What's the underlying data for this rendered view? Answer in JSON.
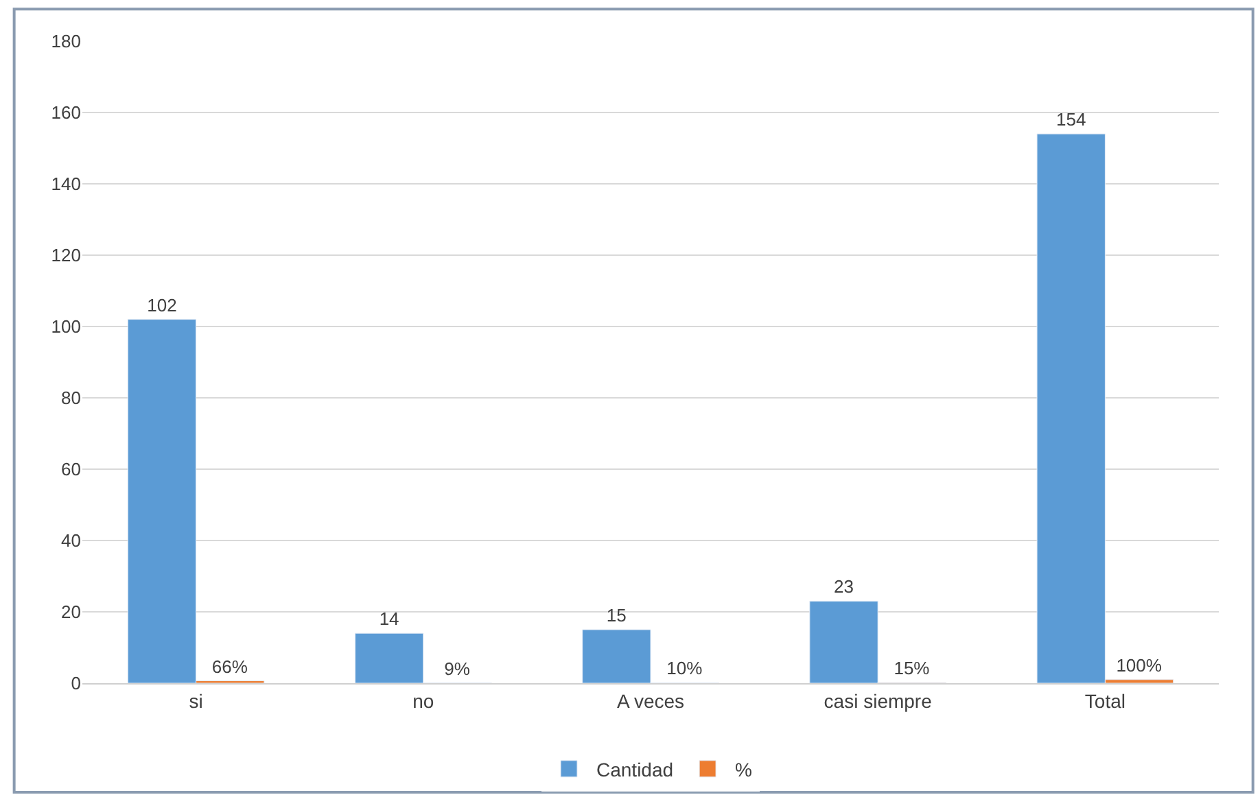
{
  "chart_data": {
    "type": "bar",
    "categories": [
      "si",
      "no",
      "A veces",
      "casi siempre",
      "Total"
    ],
    "series": [
      {
        "name": "Cantidad",
        "color": "#5b9bd5",
        "values": [
          102,
          14,
          15,
          23,
          154
        ],
        "value_labels": [
          "102",
          "14",
          "15",
          "23",
          "154"
        ]
      },
      {
        "name": "%",
        "color": "#ed7d31",
        "values": [
          0.66,
          0.09,
          0.1,
          0.15,
          1
        ],
        "value_labels": [
          "66%",
          "9%",
          "10%",
          "15%",
          "100%"
        ]
      }
    ],
    "ylim": [
      0,
      180
    ],
    "yticks": [
      0,
      20,
      40,
      60,
      80,
      100,
      120,
      140,
      160,
      180
    ],
    "grid": "y",
    "legend": "bottom"
  }
}
